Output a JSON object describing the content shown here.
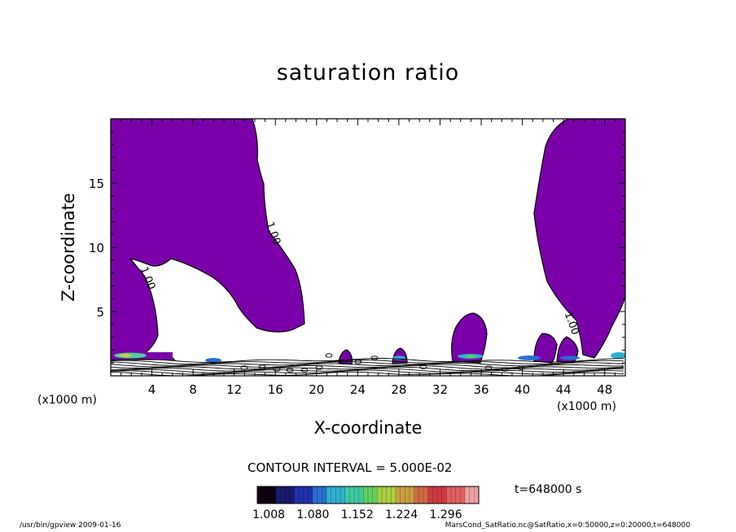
{
  "chart_data": {
    "type": "contour",
    "title": "saturation ratio",
    "xlabel": "X-coordinate",
    "ylabel": "Z-coordinate",
    "x_unit_label": "(x1000 m)",
    "xlim": [
      0,
      50
    ],
    "ylim": [
      0,
      20
    ],
    "x_ticks": [
      4,
      8,
      12,
      16,
      20,
      24,
      28,
      32,
      36,
      40,
      44,
      48
    ],
    "y_ticks": [
      5,
      10,
      15
    ],
    "contour_labels": [
      {
        "text": "1.00",
        "x": 15.5,
        "y": 11.0
      },
      {
        "text": "1.00",
        "x": 3.3,
        "y": 7.5
      },
      {
        "text": "1.00",
        "x": 44.5,
        "y": 4.0
      }
    ],
    "fill_color": "#7a00aa",
    "contour_interval_text": "CONTOUR INTERVAL = 5.000E-02",
    "colorbar": {
      "tick_labels": [
        "1.008",
        "1.080",
        "1.152",
        "1.224",
        "1.296"
      ],
      "min": 1.008,
      "max": 1.296,
      "colors": [
        "#100010",
        "#1a1a6e",
        "#2030b0",
        "#2a70d0",
        "#30b0d0",
        "#40c8a0",
        "#60d060",
        "#a8d040",
        "#c8a040",
        "#d06a40",
        "#d03a40",
        "#e06060",
        "#f0a0a0"
      ]
    }
  },
  "time_text": "t=648000 s",
  "footer_left": "/usr/bin/gpview  2009-01-16",
  "footer_right": "MarsCond_SatRatio.nc@SatRatio,x=0:50000,z=0:20000,t=648000"
}
